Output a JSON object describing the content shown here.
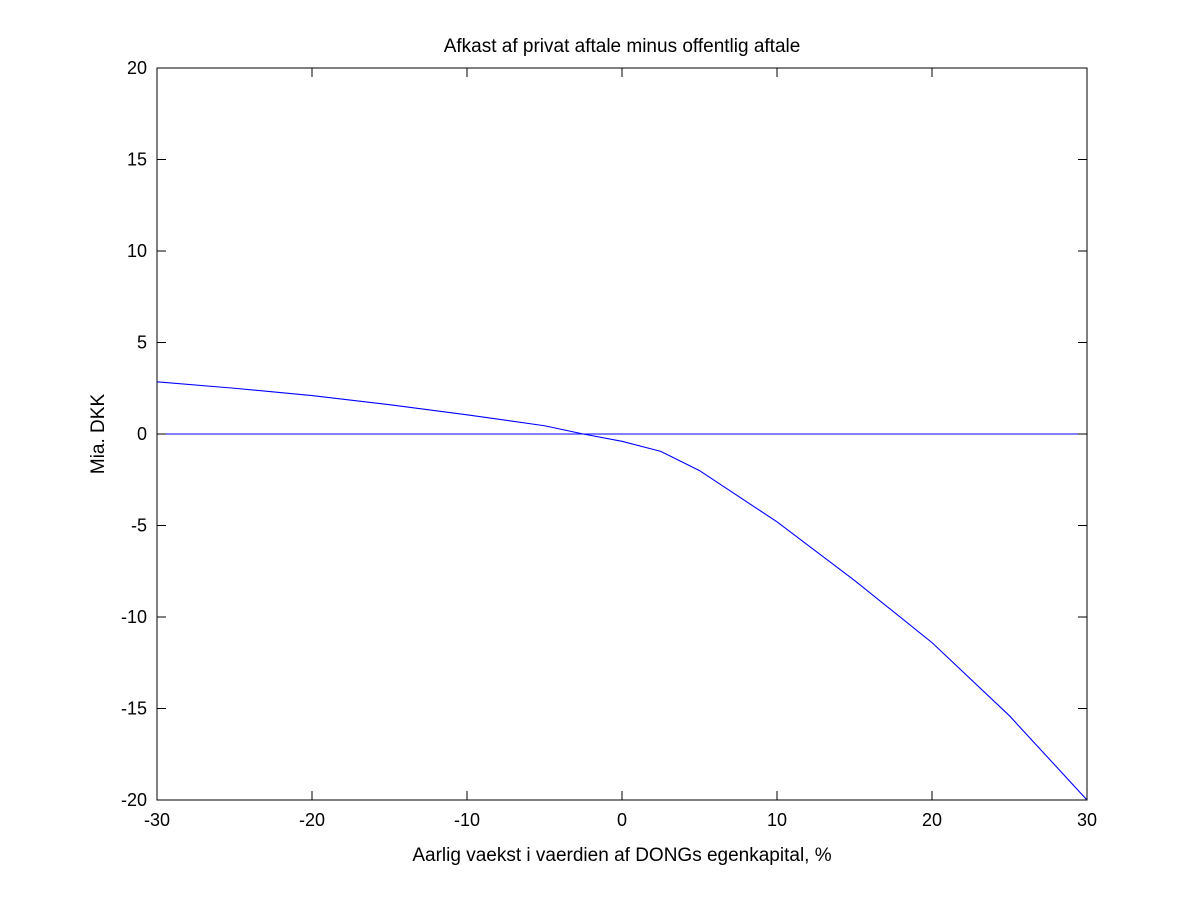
{
  "chart_data": {
    "type": "line",
    "title": "Afkast af privat aftale minus offentlig aftale",
    "xlabel": "Aarlig vaekst i vaerdien af DONGs egenkapital, %",
    "ylabel": "Mia. DKK",
    "xlim": [
      -30,
      30
    ],
    "ylim": [
      -20,
      20
    ],
    "xticks": [
      -30,
      -20,
      -10,
      0,
      10,
      20,
      30
    ],
    "yticks": [
      -20,
      -15,
      -10,
      -5,
      0,
      5,
      10,
      15,
      20
    ],
    "xtick_labels": [
      "-30",
      "-20",
      "-10",
      "0",
      "10",
      "20",
      "30"
    ],
    "ytick_labels": [
      "-20",
      "-15",
      "-10",
      "-5",
      "0",
      "5",
      "10",
      "15",
      "20"
    ],
    "grid": false,
    "box": true,
    "colors": {
      "line": "#0000ff",
      "axes": "#000000",
      "background": "#ffffff"
    },
    "series": [
      {
        "x": [
          -30,
          -25,
          -20,
          -15,
          -10,
          -5,
          -2.5,
          0,
          2.5,
          5,
          10,
          15,
          20,
          25,
          30
        ],
        "values": [
          2.85,
          2.5,
          2.1,
          1.6,
          1.05,
          0.45,
          0.0,
          -0.4,
          -0.95,
          -2.0,
          -4.8,
          -8.0,
          -11.4,
          -15.4,
          -20.0
        ]
      },
      {
        "x": [
          -30,
          30
        ],
        "values": [
          0,
          0
        ]
      }
    ]
  }
}
